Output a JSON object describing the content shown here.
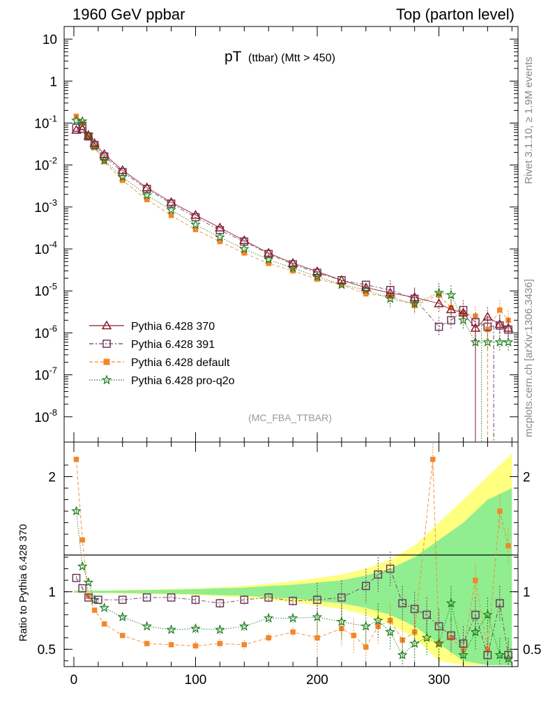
{
  "header": {
    "left": "1960 GeV ppbar",
    "right": "Top (parton level)"
  },
  "plot_title": {
    "main": "pT",
    "sub": "(ttbar) (Mtt > 450)"
  },
  "analysis_tag": "(MC_FBA_TTBAR)",
  "side_labels": {
    "rivet": "Rivet 3.1.10, ≥ 1.9M events",
    "source": "mcplots.cern.ch [arXiv:1306.3436]"
  },
  "ratio_ylabel": "Ratio to Pythia 6.428 370",
  "colors": {
    "p370": "#8b1a2b",
    "p391": "#6b3a5a",
    "pdefault": "#f4862a",
    "pq2o": "#1a7a1a",
    "band_yellow": "#ffff80",
    "band_green": "#90ee90"
  },
  "chart_data": [
    {
      "type": "scatter",
      "panel": "main",
      "y_scale": "log",
      "xlim": [
        -8,
        365
      ],
      "ylim": [
        2.5e-09,
        20
      ],
      "y_ticks": [
        "10",
        "1",
        "10^-1",
        "10^-2",
        "10^-3",
        "10^-4",
        "10^-5",
        "10^-6",
        "10^-7",
        "10^-8"
      ],
      "legend_position": "lower-left",
      "series": [
        {
          "name": "Pythia 6.428 370",
          "key": "p370",
          "marker": "triangle",
          "points": [
            [
              2,
              0.068
            ],
            [
              7,
              0.072
            ],
            [
              12,
              0.05
            ],
            [
              17,
              0.033
            ],
            [
              25,
              0.018
            ],
            [
              40,
              0.0075
            ],
            [
              60,
              0.0029
            ],
            [
              80,
              0.0013
            ],
            [
              100,
              0.00064
            ],
            [
              120,
              0.00032
            ],
            [
              140,
              0.00016
            ],
            [
              160,
              8e-05
            ],
            [
              180,
              4.6e-05
            ],
            [
              200,
              2.9e-05
            ],
            [
              220,
              1.8e-05
            ],
            [
              240,
              1.2e-05
            ],
            [
              260,
              9e-06
            ],
            [
              280,
              7e-06
            ],
            [
              300,
              5e-06
            ],
            [
              310,
              3.6e-06
            ],
            [
              320,
              3e-06
            ],
            [
              330,
              1.3e-06
            ],
            [
              340,
              2.4e-06
            ],
            [
              350,
              1.6e-06
            ],
            [
              357,
              1.3e-06
            ]
          ]
        },
        {
          "name": "Pythia 6.428 391",
          "key": "p391",
          "marker": "open-square",
          "points": [
            [
              2,
              0.077
            ],
            [
              7,
              0.085
            ],
            [
              12,
              0.048
            ],
            [
              17,
              0.03
            ],
            [
              25,
              0.016
            ],
            [
              40,
              0.0068
            ],
            [
              60,
              0.0027
            ],
            [
              80,
              0.0012
            ],
            [
              100,
              0.00057
            ],
            [
              120,
              0.00028
            ],
            [
              140,
              0.00015
            ],
            [
              160,
              7.6e-05
            ],
            [
              180,
              4.3e-05
            ],
            [
              200,
              2.7e-05
            ],
            [
              220,
              1.8e-05
            ],
            [
              240,
              1.4e-05
            ],
            [
              260,
              1.05e-05
            ],
            [
              280,
              6.5e-06
            ],
            [
              300,
              1.4e-06
            ],
            [
              310,
              2e-06
            ],
            [
              320,
              3.5e-06
            ],
            [
              330,
              1.8e-06
            ],
            [
              340,
              1.4e-06
            ],
            [
              350,
              1.5e-06
            ],
            [
              357,
              1.2e-06
            ]
          ]
        },
        {
          "name": "Pythia 6.428 default",
          "key": "pdefault",
          "marker": "filled-square",
          "points": [
            [
              2,
              0.145
            ],
            [
              7,
              0.1
            ],
            [
              12,
              0.048
            ],
            [
              17,
              0.026
            ],
            [
              25,
              0.012
            ],
            [
              40,
              0.0043
            ],
            [
              60,
              0.0015
            ],
            [
              80,
              0.00063
            ],
            [
              100,
              0.00029
            ],
            [
              120,
              0.00015
            ],
            [
              140,
              8e-05
            ],
            [
              160,
              4.5e-05
            ],
            [
              180,
              3e-05
            ],
            [
              200,
              1.9e-05
            ],
            [
              220,
              1.4e-05
            ],
            [
              240,
              8.5e-06
            ],
            [
              260,
              7.5e-06
            ],
            [
              280,
              4.5e-06
            ],
            [
              300,
              8e-06
            ],
            [
              310,
              4e-06
            ],
            [
              320,
              3e-06
            ],
            [
              330,
              2.5e-06
            ],
            [
              340,
              1.2e-06
            ],
            [
              350,
              3.5e-06
            ],
            [
              357,
              2e-06
            ]
          ]
        },
        {
          "name": "Pythia 6.428 pro-q2o",
          "key": "pq2o",
          "marker": "star",
          "points": [
            [
              2,
              0.115
            ],
            [
              7,
              0.11
            ],
            [
              12,
              0.052
            ],
            [
              17,
              0.028
            ],
            [
              25,
              0.013
            ],
            [
              40,
              0.0052
            ],
            [
              60,
              0.0019
            ],
            [
              80,
              0.00085
            ],
            [
              100,
              0.00038
            ],
            [
              120,
              0.00019
            ],
            [
              140,
              0.0001
            ],
            [
              160,
              5.6e-05
            ],
            [
              180,
              3.5e-05
            ],
            [
              200,
              2.2e-05
            ],
            [
              220,
              1.4e-05
            ],
            [
              240,
              1.05e-05
            ],
            [
              260,
              6.5e-06
            ],
            [
              280,
              5e-06
            ],
            [
              300,
              9e-06
            ],
            [
              310,
              8e-06
            ],
            [
              320,
              2e-06
            ],
            [
              330,
              6e-07
            ],
            [
              340,
              6e-07
            ],
            [
              350,
              6e-07
            ],
            [
              357,
              6e-07
            ]
          ]
        }
      ]
    },
    {
      "type": "scatter",
      "panel": "ratio",
      "ylabel": "Ratio to Pythia 6.428 370",
      "xlim": [
        -8,
        365
      ],
      "ylim": [
        0.35,
        2.3
      ],
      "x_ticks": [
        0,
        100,
        200,
        300
      ],
      "y_ticks": [
        0.5,
        1,
        2
      ],
      "band": {
        "x": [
          0,
          20,
          40,
          60,
          80,
          100,
          120,
          140,
          160,
          180,
          200,
          220,
          240,
          260,
          280,
          300,
          320,
          340,
          360
        ],
        "yellow_halfwidth": [
          0.01,
          0.012,
          0.015,
          0.02,
          0.025,
          0.03,
          0.04,
          0.05,
          0.07,
          0.09,
          0.12,
          0.15,
          0.2,
          0.28,
          0.4,
          0.6,
          0.8,
          1.0,
          1.2
        ],
        "green_halfwidth": [
          0.008,
          0.009,
          0.011,
          0.015,
          0.018,
          0.022,
          0.03,
          0.035,
          0.05,
          0.06,
          0.08,
          0.1,
          0.14,
          0.2,
          0.3,
          0.45,
          0.6,
          0.8,
          0.9
        ]
      },
      "series": [
        {
          "name": "Pythia 6.428 391",
          "key": "p391",
          "marker": "open-square",
          "points": [
            [
              2,
              1.12
            ],
            [
              7,
              1.03
            ],
            [
              12,
              0.95
            ],
            [
              20,
              0.93
            ],
            [
              40,
              0.93
            ],
            [
              60,
              0.95
            ],
            [
              80,
              0.95
            ],
            [
              100,
              0.93
            ],
            [
              120,
              0.9
            ],
            [
              140,
              0.93
            ],
            [
              160,
              0.95
            ],
            [
              180,
              0.92
            ],
            [
              200,
              0.93
            ],
            [
              220,
              0.95
            ],
            [
              240,
              1.05
            ],
            [
              250,
              1.15
            ],
            [
              260,
              1.2
            ],
            [
              270,
              0.9
            ],
            [
              280,
              0.85
            ],
            [
              290,
              0.8
            ],
            [
              300,
              0.7
            ],
            [
              310,
              0.62
            ],
            [
              320,
              0.55
            ],
            [
              330,
              0.8
            ],
            [
              340,
              0.45
            ],
            [
              350,
              0.9
            ],
            [
              357,
              0.45
            ]
          ]
        },
        {
          "name": "Pythia 6.428 default",
          "key": "pdefault",
          "marker": "filled-square",
          "points": [
            [
              2,
              2.15
            ],
            [
              7,
              1.45
            ],
            [
              12,
              0.96
            ],
            [
              17,
              0.84
            ],
            [
              25,
              0.72
            ],
            [
              40,
              0.62
            ],
            [
              60,
              0.55
            ],
            [
              80,
              0.54
            ],
            [
              100,
              0.53
            ],
            [
              120,
              0.55
            ],
            [
              140,
              0.54
            ],
            [
              160,
              0.6
            ],
            [
              180,
              0.65
            ],
            [
              200,
              0.6
            ],
            [
              220,
              0.68
            ],
            [
              230,
              0.62
            ],
            [
              240,
              0.52
            ],
            [
              250,
              0.7
            ],
            [
              260,
              0.75
            ],
            [
              270,
              0.58
            ],
            [
              280,
              0.65
            ],
            [
              295,
              2.15
            ],
            [
              300,
              0.55
            ],
            [
              310,
              0.6
            ],
            [
              320,
              0.5
            ],
            [
              330,
              1.1
            ],
            [
              340,
              0.5
            ],
            [
              350,
              1.7
            ],
            [
              357,
              1.4
            ]
          ]
        },
        {
          "name": "Pythia 6.428 pro-q2o",
          "key": "pq2o",
          "marker": "star",
          "points": [
            [
              2,
              1.7
            ],
            [
              7,
              1.22
            ],
            [
              12,
              1.08
            ],
            [
              17,
              0.93
            ],
            [
              25,
              0.86
            ],
            [
              40,
              0.78
            ],
            [
              60,
              0.7
            ],
            [
              80,
              0.67
            ],
            [
              100,
              0.68
            ],
            [
              120,
              0.67
            ],
            [
              140,
              0.7
            ],
            [
              160,
              0.77
            ],
            [
              180,
              0.77
            ],
            [
              200,
              0.78
            ],
            [
              220,
              0.74
            ],
            [
              240,
              0.7
            ],
            [
              250,
              0.75
            ],
            [
              260,
              0.65
            ],
            [
              270,
              0.45
            ],
            [
              280,
              0.55
            ],
            [
              290,
              0.6
            ],
            [
              300,
              0.55
            ],
            [
              310,
              0.9
            ],
            [
              320,
              0.45
            ],
            [
              330,
              0.65
            ],
            [
              340,
              0.8
            ],
            [
              350,
              0.45
            ],
            [
              357,
              0.42
            ]
          ]
        }
      ]
    }
  ]
}
